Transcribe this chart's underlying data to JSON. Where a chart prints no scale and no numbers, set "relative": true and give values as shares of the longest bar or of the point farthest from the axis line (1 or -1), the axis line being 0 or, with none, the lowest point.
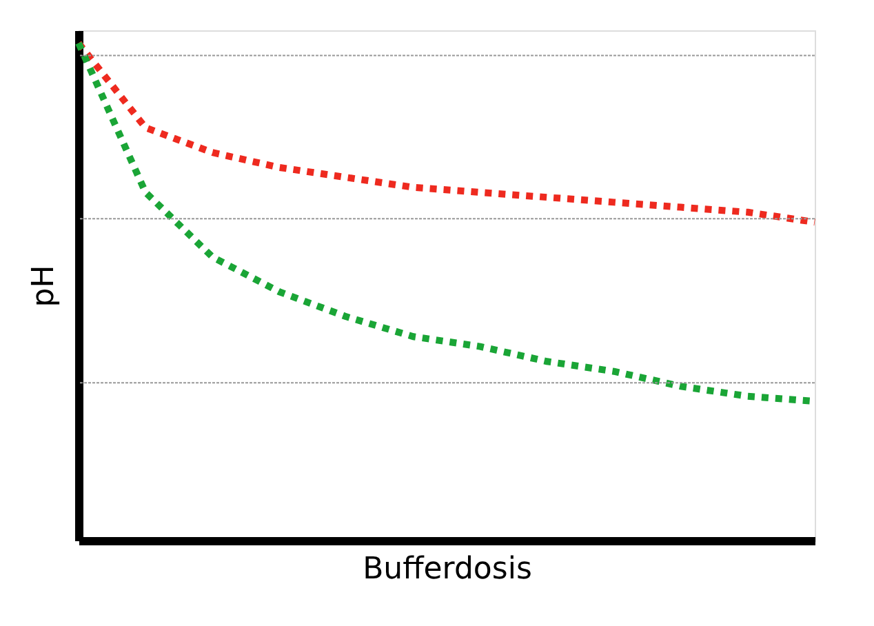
{
  "chart_data": {
    "type": "line",
    "relative": true,
    "xlabel": "Bufferdosis",
    "ylabel": "pH",
    "categories": [
      null,
      null,
      null,
      null,
      null,
      null,
      null,
      null,
      null,
      null,
      null,
      null
    ],
    "series": [
      {
        "color": "#ee2a1f",
        "values": [
          1,
          0.83,
          0.78,
          0.75,
          0.73,
          0.71,
          0.7,
          0.69,
          0.68,
          0.67,
          0.66,
          0.64
        ]
      },
      {
        "color": "#1aa536",
        "values": [
          1,
          0.7,
          0.57,
          0.5,
          0.45,
          0.41,
          0.39,
          0.36,
          0.34,
          0.31,
          0.29,
          0.28
        ]
      }
    ],
    "ref_lines": [
      {
        "axis": "y",
        "value": 0.975,
        "color": "#999999",
        "line_style": "dotted"
      },
      {
        "axis": "y",
        "value": 0.647,
        "color": "#999999",
        "line_style": "dotted"
      },
      {
        "axis": "y",
        "value": 0.317,
        "color": "#999999",
        "line_style": "dotted"
      }
    ],
    "legend": false,
    "marker": "none",
    "line_style": "dotted",
    "tick_labels": false
  }
}
